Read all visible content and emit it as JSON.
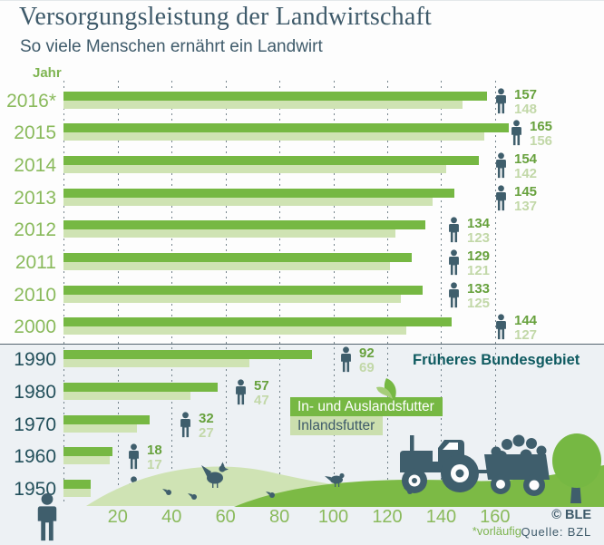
{
  "header": {
    "title": "Versorgungsleistung der Landwirtschaft",
    "subtitle": "So viele Menschen ernährt ein Landwirt"
  },
  "chart_data": {
    "type": "bar",
    "orientation": "horizontal",
    "title": "Versorgungsleistung der Landwirtschaft",
    "subtitle": "So viele Menschen ernährt ein Landwirt",
    "y_axis_label": "Jahr",
    "x_ticks": [
      20,
      40,
      60,
      80,
      100,
      120,
      140,
      160
    ],
    "xlim": [
      0,
      170
    ],
    "grid": "dashed-vertical",
    "categories": [
      "2016*",
      "2015",
      "2014",
      "2013",
      "2012",
      "2011",
      "2010",
      "2000",
      "1990",
      "1980",
      "1970",
      "1960",
      "1950"
    ],
    "series": [
      {
        "name": "In- und Auslandsfutter",
        "color": "#76b843",
        "values": [
          157,
          165,
          154,
          145,
          134,
          129,
          133,
          144,
          92,
          57,
          32,
          18,
          10
        ]
      },
      {
        "name": "Inlandsfutter",
        "color": "#cfe3b3",
        "values": [
          148,
          156,
          142,
          137,
          123,
          121,
          125,
          127,
          69,
          47,
          27,
          17,
          10
        ]
      }
    ],
    "section_note": {
      "label": "Früheres Bundesgebiet",
      "applies_from_category": "1990"
    }
  },
  "legend": {
    "items": [
      {
        "label": "In- und Auslandsfutter",
        "color": "#76b843"
      },
      {
        "label": "Inlandsfutter",
        "color": "#cbdfae"
      }
    ]
  },
  "footer": {
    "footnote": "*vorläufig",
    "copyright": "© BLE",
    "source": "Quelle: BZL"
  },
  "icons": {
    "person": "person-icon",
    "leaf": "leaf-icon",
    "tractor": "tractor-icon",
    "trailer": "trailer-icon",
    "tree": "tree-icon",
    "chicken": "chicken-icon",
    "bird": "bird-icon"
  },
  "colors": {
    "bar_dark": "#76b843",
    "bar_light": "#cfe3b3",
    "year_green": "#8aba5c",
    "year_teal": "#23505b",
    "value_dark": "#67a13d",
    "value_light": "#c2d8a8",
    "icon_slate": "#3f5e6c",
    "divider": "#54646f",
    "bg_bottom": "#edf1f4",
    "note_teal": "#0e5a60",
    "hill_main": "#7cba45",
    "hill_light": "#cfe3b4"
  }
}
